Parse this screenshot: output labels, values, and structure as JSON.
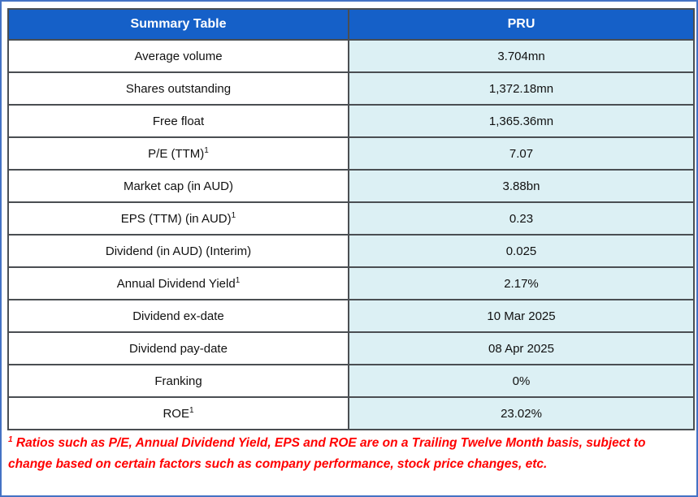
{
  "colors": {
    "header_bg": "#1560c8",
    "header_text": "#ffffff",
    "value_cell_bg": "#dcf0f4",
    "label_cell_bg": "#ffffff",
    "grid_border": "#4a4e52",
    "outer_frame": "#4472c4",
    "footnote_text": "#ff0000"
  },
  "table": {
    "header": {
      "label": "Summary Table",
      "ticker": "PRU"
    },
    "rows": [
      {
        "label": "Average volume",
        "value": "3.704mn"
      },
      {
        "label": "Shares outstanding",
        "value": "1,372.18mn"
      },
      {
        "label": "Free float",
        "value": "1,365.36mn"
      },
      {
        "label": "P/E (TTM)",
        "sup": "1",
        "value": "7.07"
      },
      {
        "label": "Market cap (in AUD)",
        "value": "3.88bn"
      },
      {
        "label": "EPS (TTM) (in AUD)",
        "sup": "1",
        "value": "0.23"
      },
      {
        "label": "Dividend (in AUD) (Interim)",
        "value": "0.025"
      },
      {
        "label": "Annual Dividend Yield",
        "sup": "1",
        "value": "2.17%"
      },
      {
        "label": "Dividend ex-date",
        "value": "10 Mar 2025"
      },
      {
        "label": "Dividend pay-date",
        "value": "08 Apr 2025"
      },
      {
        "label": "Franking",
        "value": "0%"
      },
      {
        "label": "ROE",
        "sup": "1",
        "value": "23.02%"
      }
    ]
  },
  "footnote": {
    "sup": "1",
    "text": " Ratios such as P/E, Annual Dividend Yield, EPS and ROE are on a Trailing Twelve Month basis, subject to change based on certain factors such as company performance, stock price changes, etc."
  }
}
